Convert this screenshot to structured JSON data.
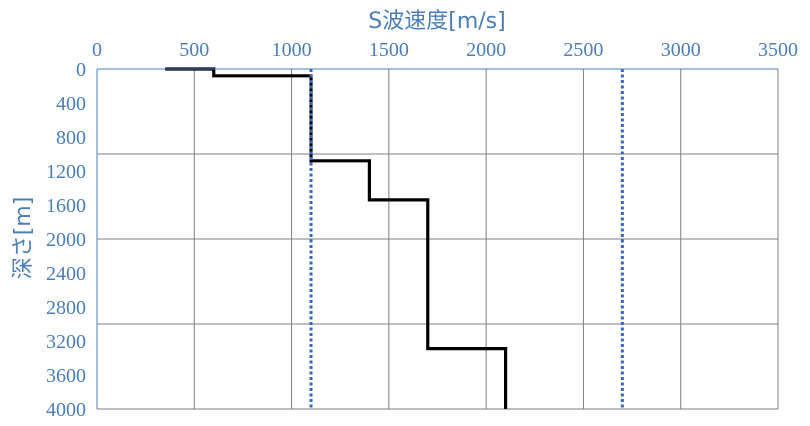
{
  "chart_data": {
    "type": "line",
    "xlabel": "S波速度[m/s]",
    "ylabel": "深さ[m]",
    "x_axis": {
      "position": "top",
      "range": [
        0,
        3500
      ],
      "ticks": [
        0,
        500,
        1000,
        1500,
        2000,
        2500,
        3000,
        3500
      ]
    },
    "y_axis": {
      "inverted": true,
      "range": [
        0,
        4000
      ],
      "ticks": [
        0,
        400,
        800,
        1200,
        1600,
        2000,
        2400,
        2800,
        3200,
        3600,
        4000
      ]
    },
    "grid": "major gridlines every 500 m/s (x) and 1000 m (y)",
    "series": [
      {
        "style": "solid step line",
        "color": "#000000",
        "points": [
          [
            350,
            0
          ],
          [
            600,
            0
          ],
          [
            600,
            80
          ],
          [
            1100,
            80
          ],
          [
            1100,
            1080
          ],
          [
            1400,
            1080
          ],
          [
            1400,
            1540
          ],
          [
            1700,
            1540
          ],
          [
            1700,
            3290
          ],
          [
            2100,
            3290
          ],
          [
            2100,
            4000
          ]
        ]
      },
      {
        "style": "dotted vertical line",
        "color": "#3366cc",
        "points": [
          [
            1100,
            0
          ],
          [
            1100,
            4000
          ]
        ]
      },
      {
        "style": "dotted vertical line",
        "color": "#3366cc",
        "points": [
          [
            2700,
            0
          ],
          [
            2700,
            4000
          ]
        ]
      }
    ]
  },
  "colors": {
    "axis_text": "#4a7ebb",
    "grid": "#7f7f7f",
    "axis_line": "#4a7ebb"
  }
}
